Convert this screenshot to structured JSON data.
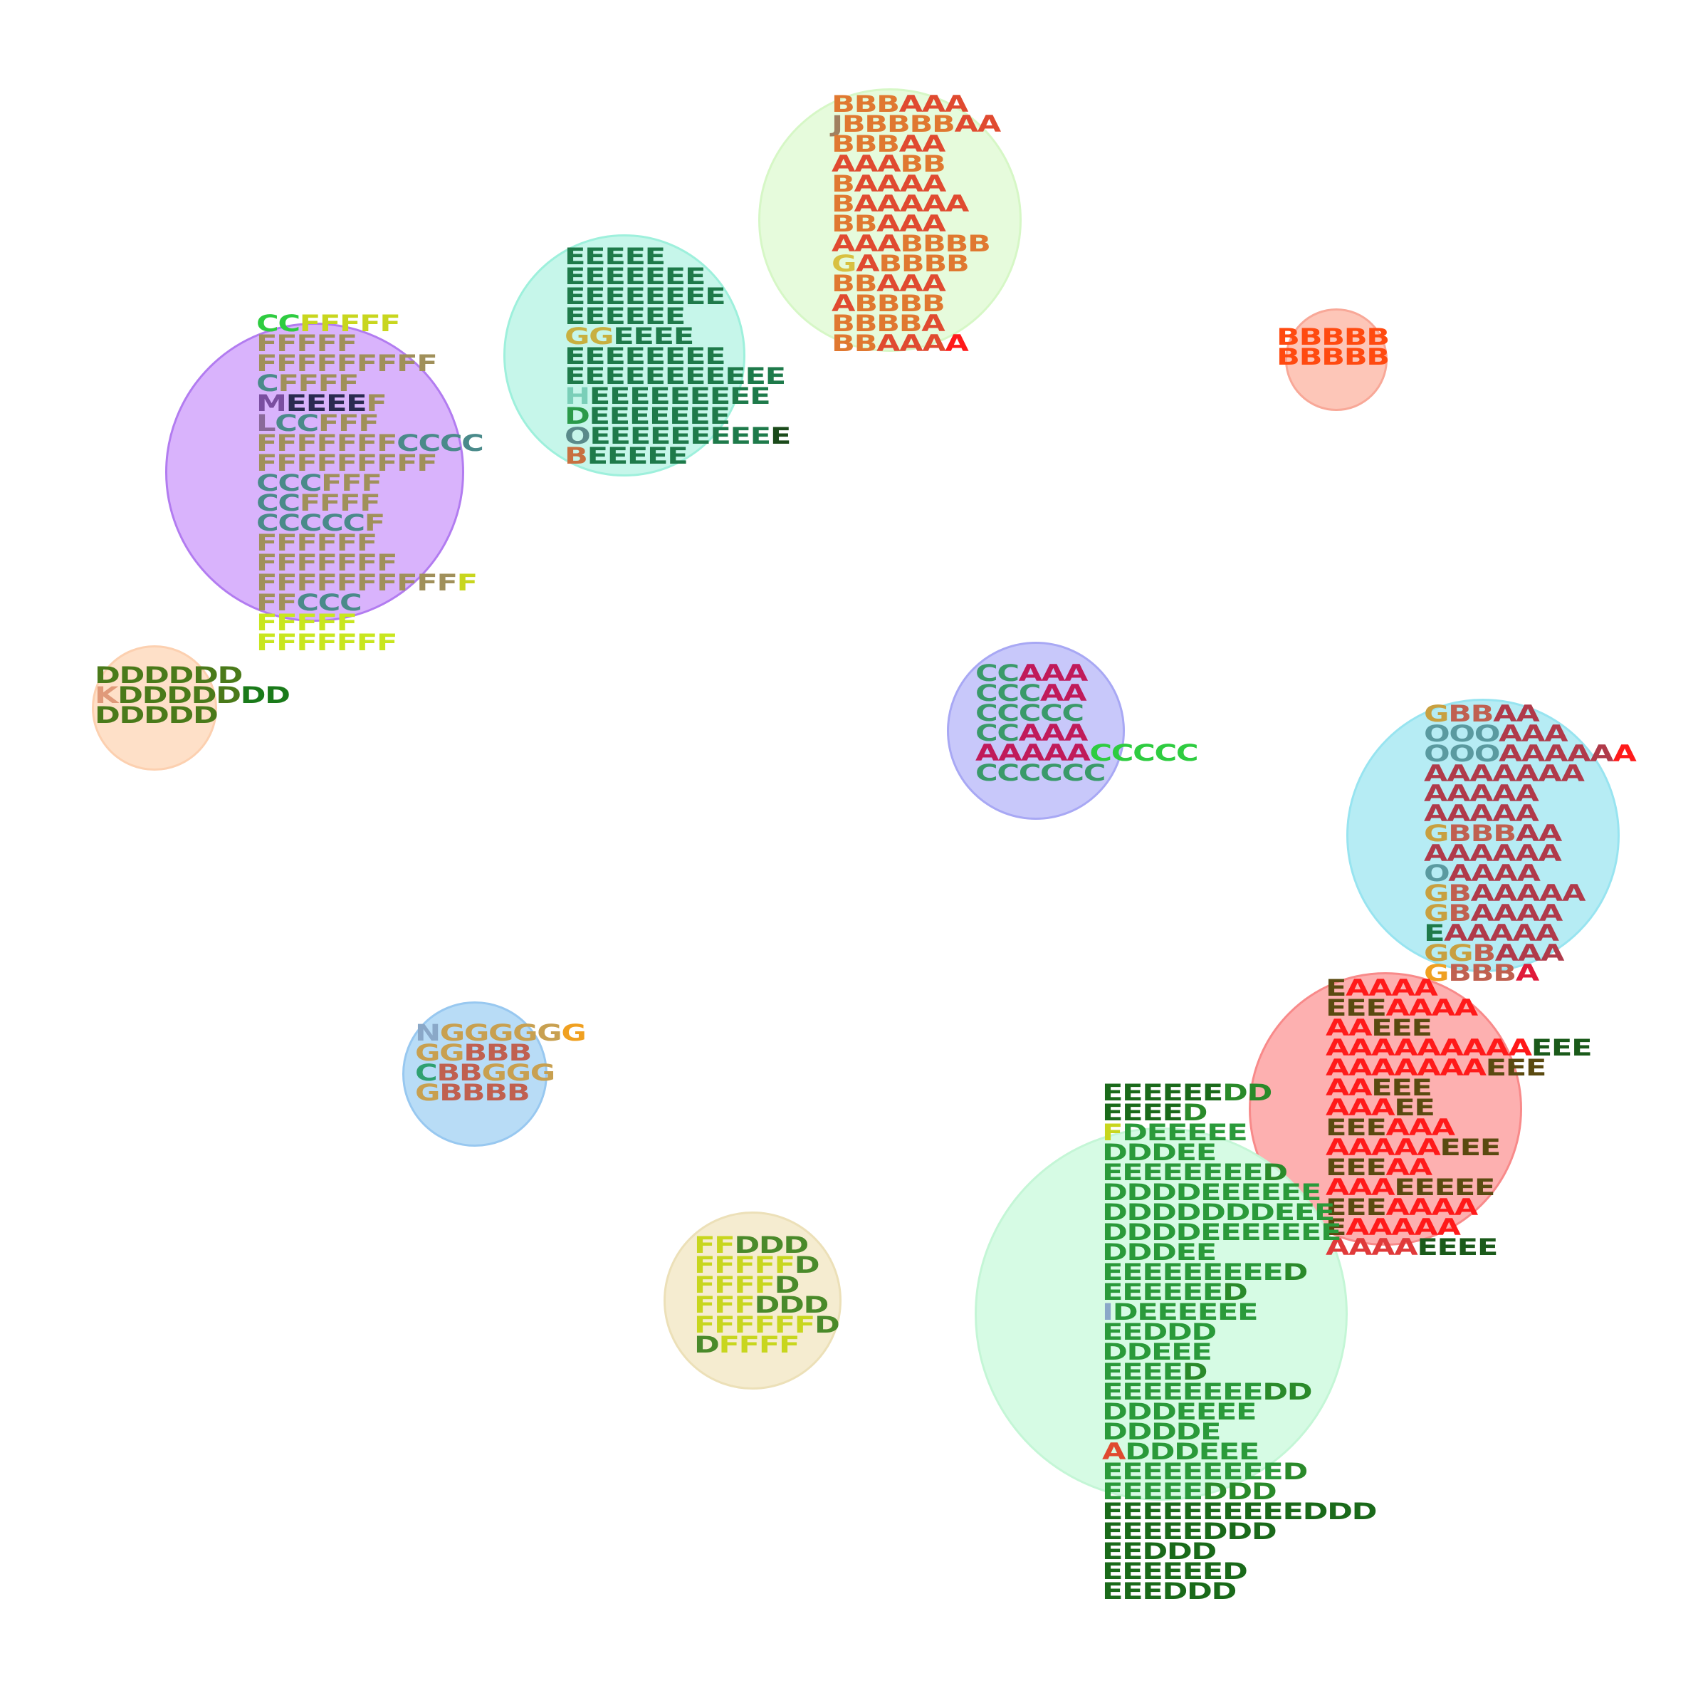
{
  "clusters": [
    {
      "name": "cluster-purple",
      "fill": "#d9b3fc",
      "stroke": "#b27cf0",
      "rows": [
        [
          [
            "CC",
            "#2ecc40"
          ],
          [
            "FFFFF",
            "#c8d61e"
          ]
        ],
        [
          [
            "FFFFF",
            "#a0905a"
          ]
        ],
        [
          [
            "FFFFFFFFF",
            "#a0905a"
          ]
        ],
        [
          [
            "C",
            "#4a8a8a"
          ],
          [
            "FFFF",
            "#a0905a"
          ]
        ],
        [
          [
            "M",
            "#7a4ea0"
          ],
          [
            "EEEE",
            "#2a2a50"
          ],
          [
            "F",
            "#a0905a"
          ]
        ],
        [
          [
            "L",
            "#8a6a9a"
          ],
          [
            "CC",
            "#4a8a8a"
          ],
          [
            "FFF",
            "#a0905a"
          ]
        ],
        [
          [
            "FFFFFFF",
            "#a0905a"
          ],
          [
            "CCCC",
            "#4a8a8a"
          ]
        ],
        [
          [
            "FFFFFFFFF",
            "#a0905a"
          ]
        ],
        [
          [
            "CCC",
            "#4a8a8a"
          ],
          [
            "FFF",
            "#a0905a"
          ]
        ],
        [
          [
            "CC",
            "#4a8a8a"
          ],
          [
            "FFFF",
            "#a0905a"
          ]
        ],
        [
          [
            "CCCCC",
            "#4a8a8a"
          ],
          [
            "F",
            "#a0905a"
          ]
        ],
        [
          [
            "FFFFFF",
            "#a0905a"
          ]
        ],
        [
          [
            "FFFFFFF",
            "#a0905a"
          ]
        ],
        [
          [
            "FFFFFFFFFF",
            "#a0905a"
          ],
          [
            "F",
            "#c8d61e"
          ]
        ],
        [
          [
            "FF",
            "#a0905a"
          ],
          [
            "CCC",
            "#4a8a8a"
          ]
        ],
        [
          [
            "FFFFF",
            "#c8e61e"
          ]
        ],
        [
          [
            "FFFFFFF",
            "#c8e61e"
          ]
        ]
      ]
    },
    {
      "name": "cluster-teal",
      "fill": "#c6f6ea",
      "stroke": "#9ef0dc",
      "rows": [
        [
          [
            "EEEEE",
            "#1e7a4a"
          ]
        ],
        [
          [
            "EEEEEEE",
            "#1e7a4a"
          ]
        ],
        [
          [
            "EEEEEEEE",
            "#1e7a4a"
          ]
        ],
        [
          [
            "EEEEEE",
            "#1e7a4a"
          ]
        ],
        [
          [
            "GG",
            "#c8b040"
          ],
          [
            "EEEE",
            "#1e7a4a"
          ]
        ],
        [
          [
            "EEEEEEEE",
            "#1e7a4a"
          ]
        ],
        [
          [
            "EEEEEEEEEEE",
            "#1e7a4a"
          ]
        ],
        [
          [
            "H",
            "#7acfb8"
          ],
          [
            "EEEEEEEEE",
            "#1e7a4a"
          ]
        ],
        [
          [
            "D",
            "#2a9a4a"
          ],
          [
            "EEEEEEE",
            "#1e7a4a"
          ]
        ],
        [
          [
            "O",
            "#5a8a8a"
          ],
          [
            "EEEEEEEEE",
            "#1e7a4a"
          ],
          [
            "E",
            "#1a4a1a"
          ]
        ],
        [
          [
            "B",
            "#c87040"
          ],
          [
            "EEEEE",
            "#1e7a4a"
          ]
        ]
      ]
    },
    {
      "name": "cluster-lightgreen-top",
      "fill": "#e6fbdc",
      "stroke": "#d6f7c6",
      "rows": [
        [
          [
            "BBB",
            "#e07830"
          ],
          [
            "AAA",
            "#e04a30"
          ]
        ],
        [
          [
            "J",
            "#a08060"
          ],
          [
            "BBBBB",
            "#e07830"
          ],
          [
            "AA",
            "#e04a30"
          ]
        ],
        [
          [
            "BBB",
            "#e07830"
          ],
          [
            "AA",
            "#e04a30"
          ]
        ],
        [
          [
            "AAA",
            "#e04a30"
          ],
          [
            "BB",
            "#e07830"
          ]
        ],
        [
          [
            "B",
            "#e07830"
          ],
          [
            "AAAA",
            "#e04a30"
          ]
        ],
        [
          [
            "B",
            "#e07830"
          ],
          [
            "AAAAA",
            "#e04a30"
          ]
        ],
        [
          [
            "BB",
            "#e07830"
          ],
          [
            "AAA",
            "#e04a30"
          ]
        ],
        [
          [
            "AAA",
            "#e04a30"
          ],
          [
            "BBBB",
            "#e07830"
          ]
        ],
        [
          [
            "G",
            "#d8c040"
          ],
          [
            "A",
            "#e04a30"
          ],
          [
            "BBBB",
            "#e07830"
          ]
        ],
        [
          [
            "BB",
            "#e07830"
          ],
          [
            "AAA",
            "#e04a30"
          ]
        ],
        [
          [
            "A",
            "#e04a30"
          ],
          [
            "BBBB",
            "#e07830"
          ]
        ],
        [
          [
            "BBBB",
            "#e07830"
          ],
          [
            "A",
            "#e04a30"
          ]
        ],
        [
          [
            "BB",
            "#e07830"
          ],
          [
            "AAA",
            "#e04a30"
          ],
          [
            "A",
            "#ff1a1a"
          ]
        ]
      ]
    },
    {
      "name": "cluster-salmon-small",
      "fill": "#fdc6b8",
      "stroke": "#f8a898",
      "rows": [
        [
          [
            "BBBBB",
            "#ff4a10"
          ]
        ],
        [
          [
            "BBBBB",
            "#ff4a10"
          ]
        ]
      ]
    },
    {
      "name": "cluster-peach",
      "fill": "#fee0c8",
      "stroke": "#fcd0b0",
      "rows": [
        [
          [
            "DDDDDD",
            "#4a7a1a"
          ]
        ],
        [
          [
            "K",
            "#e09a7a"
          ],
          [
            "DDDDD",
            "#4a7a1a"
          ],
          [
            "DD",
            "#1a7a1a"
          ]
        ],
        [
          [
            "DDDDD",
            "#4a7a1a"
          ]
        ]
      ]
    },
    {
      "name": "cluster-lavender",
      "fill": "#c8c8fa",
      "stroke": "#a8a8f4",
      "rows": [
        [
          [
            "CC",
            "#3a9a6a"
          ],
          [
            "AAA",
            "#c01a5a"
          ]
        ],
        [
          [
            "CCC",
            "#3a9a6a"
          ],
          [
            "AA",
            "#c01a5a"
          ]
        ],
        [
          [
            "CCCCC",
            "#3a9a6a"
          ]
        ],
        [
          [
            "CC",
            "#3a9a6a"
          ],
          [
            "AAA",
            "#c01a5a"
          ]
        ],
        [
          [
            "AAAAA",
            "#c01a5a"
          ],
          [
            "CCCCC",
            "#2ecc40"
          ]
        ],
        [
          [
            "CCCCCC",
            "#3a9a6a"
          ]
        ]
      ]
    },
    {
      "name": "cluster-cyan",
      "fill": "#b6ecf4",
      "stroke": "#98e4f0",
      "rows": [
        [
          [
            "G",
            "#c8a040"
          ],
          [
            "BB",
            "#c06050"
          ],
          [
            "AA",
            "#b03a4a"
          ]
        ],
        [
          [
            "OOO",
            "#5a9aa0"
          ],
          [
            "AAA",
            "#b03a4a"
          ]
        ],
        [
          [
            "OOO",
            "#5a9aa0"
          ],
          [
            "AAAAA",
            "#b03a4a"
          ],
          [
            "A",
            "#ff1a1a"
          ]
        ],
        [
          [
            "AAAAAAA",
            "#b03a4a"
          ]
        ],
        [
          [
            "AAAAA",
            "#b03a4a"
          ]
        ],
        [
          [
            "AAAAA",
            "#b03a4a"
          ]
        ],
        [
          [
            "G",
            "#c8a040"
          ],
          [
            "BBB",
            "#c06050"
          ],
          [
            "AA",
            "#b03a4a"
          ]
        ],
        [
          [
            "AAAAAA",
            "#b03a4a"
          ]
        ],
        [
          [
            "O",
            "#5a9aa0"
          ],
          [
            "AAAA",
            "#b03a4a"
          ]
        ],
        [
          [
            "G",
            "#c8a040"
          ],
          [
            "B",
            "#c06050"
          ],
          [
            "AAAAA",
            "#b03a4a"
          ]
        ],
        [
          [
            "G",
            "#c8a040"
          ],
          [
            "B",
            "#c06050"
          ],
          [
            "AAAA",
            "#b03a4a"
          ]
        ],
        [
          [
            "E",
            "#1e7a4a"
          ],
          [
            "AAAAA",
            "#b03a4a"
          ]
        ],
        [
          [
            "GG",
            "#c8a040"
          ],
          [
            "B",
            "#c06050"
          ],
          [
            "AAA",
            "#b03a4a"
          ]
        ],
        [
          [
            "G",
            "#f0a020"
          ],
          [
            "BBB",
            "#c06050"
          ],
          [
            "A",
            "#e01a3a"
          ]
        ]
      ]
    },
    {
      "name": "cluster-red",
      "fill": "#fdb0b0",
      "stroke": "#f88a8a",
      "rows": [
        [
          [
            "E",
            "#5a4a10"
          ],
          [
            "AAAA",
            "#ff1a1a"
          ]
        ],
        [
          [
            "EEE",
            "#5a4a10"
          ],
          [
            "AAAA",
            "#ff1a1a"
          ]
        ],
        [
          [
            "AA",
            "#ff1a1a"
          ],
          [
            "EEE",
            "#5a4a10"
          ]
        ],
        [
          [
            "AAAAAAAAA",
            "#ff1a1a"
          ],
          [
            "EEE",
            "#1a5a1a"
          ]
        ],
        [
          [
            "AAAAAAA",
            "#ff1a1a"
          ],
          [
            "EEE",
            "#5a4a10"
          ]
        ],
        [
          [
            "AA",
            "#ff1a1a"
          ],
          [
            "EEE",
            "#5a4a10"
          ]
        ],
        [
          [
            "AAA",
            "#ff1a1a"
          ],
          [
            "EE",
            "#5a4a10"
          ]
        ],
        [
          [
            "EEE",
            "#5a4a10"
          ],
          [
            "AAA",
            "#ff1a1a"
          ]
        ],
        [
          [
            "AAAAA",
            "#ff1a1a"
          ],
          [
            "EEE",
            "#5a4a10"
          ]
        ],
        [
          [
            "EEE",
            "#5a4a10"
          ],
          [
            "AA",
            "#ff1a1a"
          ]
        ],
        [
          [
            "AAA",
            "#ff1a1a"
          ],
          [
            "EEEEE",
            "#5a4a10"
          ]
        ],
        [
          [
            "EEE",
            "#5a4a10"
          ],
          [
            "AAAA",
            "#ff1a1a"
          ]
        ],
        [
          [
            "E",
            "#5a4a10"
          ],
          [
            "AAAAA",
            "#ff1a1a"
          ]
        ],
        [
          [
            "AAAA",
            "#e03a3a"
          ],
          [
            "EEEE",
            "#1a5a1a"
          ]
        ]
      ]
    },
    {
      "name": "cluster-blue",
      "fill": "#b8dcf6",
      "stroke": "#98c8f0",
      "rows": [
        [
          [
            "N",
            "#8aa8c8"
          ],
          [
            "GGGGG",
            "#c8a050"
          ],
          [
            "G",
            "#f0a020"
          ]
        ],
        [
          [
            "GG",
            "#c8a050"
          ],
          [
            "BBB",
            "#c06050"
          ]
        ],
        [
          [
            "C",
            "#2ea070"
          ],
          [
            "BB",
            "#c06050"
          ],
          [
            "GGG",
            "#c8a050"
          ]
        ],
        [
          [
            "G",
            "#c8a050"
          ],
          [
            "BBBB",
            "#c06050"
          ]
        ]
      ]
    },
    {
      "name": "cluster-beige",
      "fill": "#f5ecd0",
      "stroke": "#ece0b8",
      "rows": [
        [
          [
            "FF",
            "#c8d61e"
          ],
          [
            "DDD",
            "#4a8a2a"
          ]
        ],
        [
          [
            "FFFFF",
            "#c8d61e"
          ],
          [
            "D",
            "#4a8a2a"
          ]
        ],
        [
          [
            "FFFF",
            "#c8d61e"
          ],
          [
            "D",
            "#4a8a2a"
          ]
        ],
        [
          [
            "FFF",
            "#c8d61e"
          ],
          [
            "DDD",
            "#4a8a2a"
          ]
        ],
        [
          [
            "FFFFFF",
            "#c8d61e"
          ],
          [
            "D",
            "#4a8a2a"
          ]
        ],
        [
          [
            "D",
            "#4a8a2a"
          ],
          [
            "FFFF",
            "#c8d61e"
          ]
        ]
      ]
    },
    {
      "name": "cluster-mint",
      "fill": "#d6fbe4",
      "stroke": "#c4f6d6",
      "rows": [
        [
          [
            "EEEEEE",
            "#1a6a1a"
          ],
          [
            "DD",
            "#2a8a2a"
          ]
        ],
        [
          [
            "EEEE",
            "#1a6a1a"
          ],
          [
            "D",
            "#2a8a2a"
          ]
        ],
        [
          [
            "F",
            "#c8d61e"
          ],
          [
            "DEEEEE",
            "#2a9a3a"
          ]
        ],
        [
          [
            "DDDEE",
            "#2a9a3a"
          ]
        ],
        [
          [
            "EEEEEEEE",
            "#2a9a3a"
          ],
          [
            "D",
            "#2a8a2a"
          ]
        ],
        [
          [
            "DDDDEEEEEE",
            "#2a9a3a"
          ]
        ],
        [
          [
            "DDDDDDDEEE",
            "#2a9a3a"
          ]
        ],
        [
          [
            "DDDDEEEEEEE",
            "#2a9a3a"
          ]
        ],
        [
          [
            "DDDEE",
            "#2a9a3a"
          ]
        ],
        [
          [
            "EEEEEEEEE",
            "#2a9a3a"
          ],
          [
            "D",
            "#2a8a2a"
          ]
        ],
        [
          [
            "EEEEEE",
            "#2a9a3a"
          ],
          [
            "D",
            "#2a8a2a"
          ]
        ],
        [
          [
            "I",
            "#8aa8c8"
          ],
          [
            "DEEEEEE",
            "#2a9a3a"
          ]
        ],
        [
          [
            "EEDDD",
            "#2a9a3a"
          ]
        ],
        [
          [
            "DDEEE",
            "#2a9a3a"
          ]
        ],
        [
          [
            "EEEE",
            "#2a9a3a"
          ],
          [
            "D",
            "#2a8a2a"
          ]
        ],
        [
          [
            "EEEEEEEE",
            "#2a9a3a"
          ],
          [
            "DD",
            "#2a8a2a"
          ]
        ],
        [
          [
            "DDDEEEE",
            "#2a9a3a"
          ]
        ],
        [
          [
            "DDDDE",
            "#2a9a3a"
          ]
        ],
        [
          [
            "A",
            "#e04a30"
          ],
          [
            "DDDEEE",
            "#2a9a3a"
          ]
        ],
        [
          [
            "EEEEEEEEE",
            "#2a9a3a"
          ],
          [
            "D",
            "#2a8a2a"
          ]
        ],
        [
          [
            "EEEEE",
            "#2a9a3a"
          ],
          [
            "DDD",
            "#2a8a2a"
          ]
        ],
        [
          [
            "EEEEEEEEEE",
            "#1a6a1a"
          ],
          [
            "DDD",
            "#1a6a1a"
          ]
        ],
        [
          [
            "EEEEE",
            "#1a6a1a"
          ],
          [
            "DDD",
            "#1a6a1a"
          ]
        ],
        [
          [
            "EEDDD",
            "#1a6a1a"
          ]
        ],
        [
          [
            "EEEEEE",
            "#1a6a1a"
          ],
          [
            "D",
            "#1a6a1a"
          ]
        ],
        [
          [
            "EEEDDD",
            "#1a6a1a"
          ]
        ]
      ]
    }
  ]
}
